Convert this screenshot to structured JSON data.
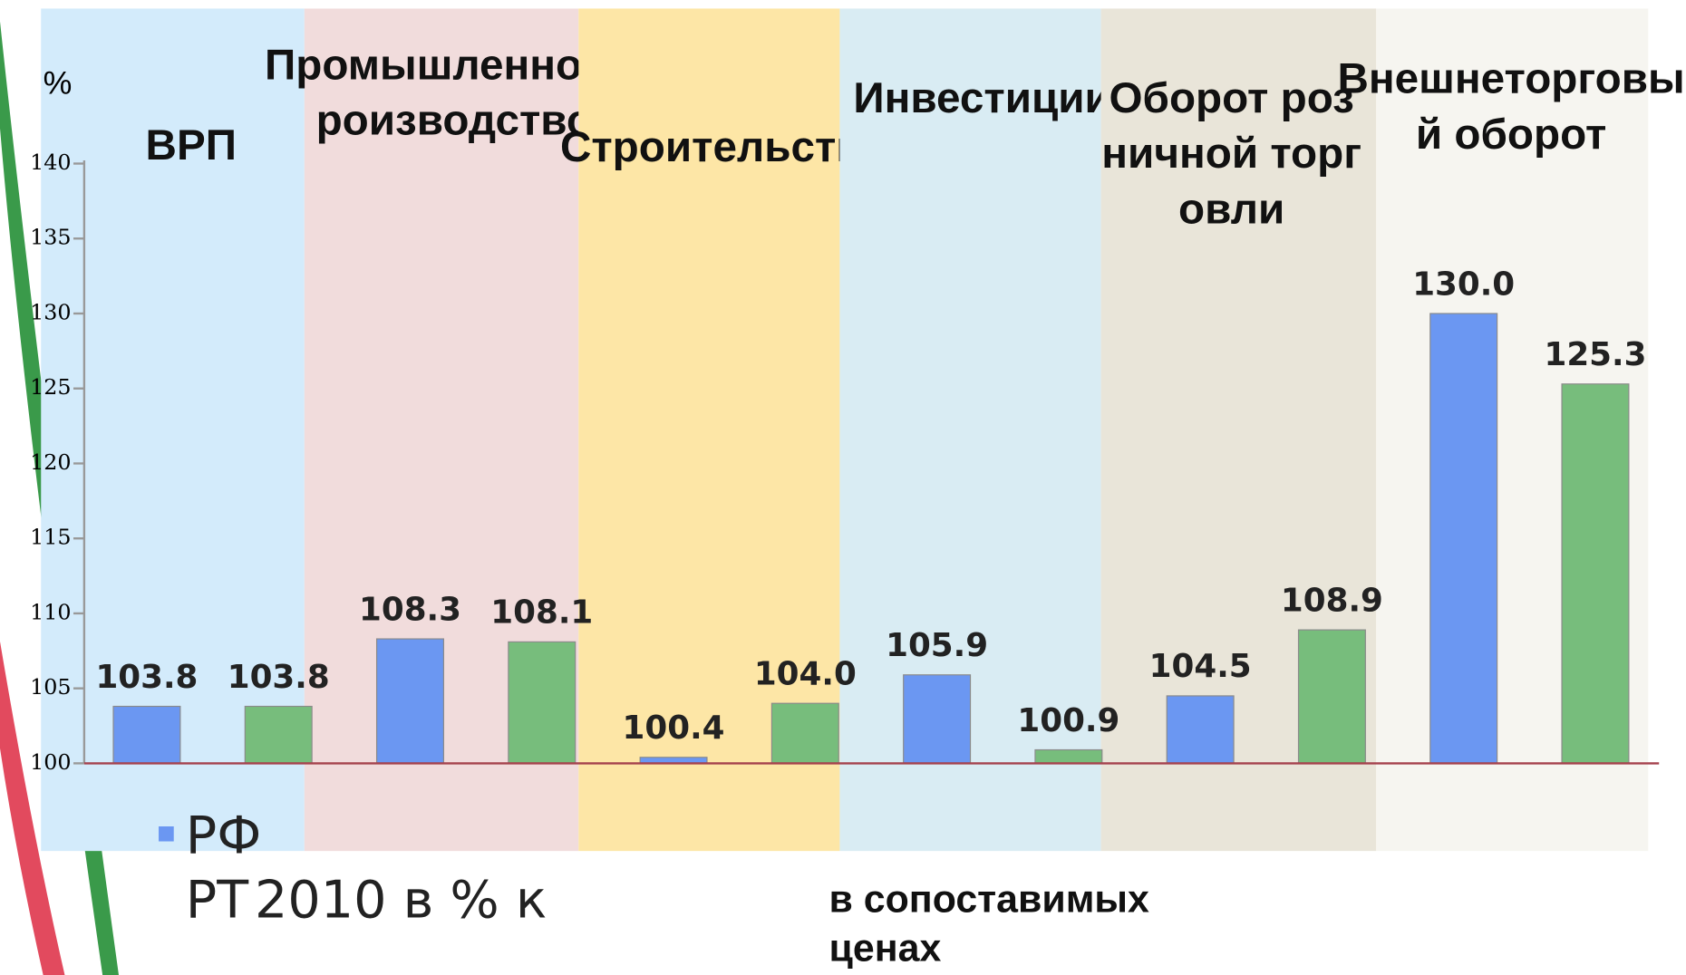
{
  "chart_data": {
    "type": "bar",
    "y_axis_label": "%",
    "categories": [
      "ВРП",
      "Промышленное производство",
      "Строительство",
      "Инвестиции",
      "Оборот розничной торговли",
      "Внешнеторговый оборот"
    ],
    "series": [
      {
        "name": "РФ",
        "color": "#6b97f2",
        "values": [
          103.8,
          108.3,
          100.4,
          105.9,
          104.5,
          130.0
        ],
        "value_labels": [
          "103.8",
          "108.3",
          "100.4",
          "105.9",
          "104.5",
          "130.0"
        ]
      },
      {
        "name": "РТ",
        "color": "#77bd7c",
        "values": [
          103.8,
          108.1,
          104.0,
          100.9,
          108.9,
          125.3
        ],
        "value_labels": [
          "103.8",
          "108.1",
          "104.0",
          "100.9",
          "108.9",
          "125.3"
        ]
      }
    ],
    "subtitle_fragment": "2010 в % к",
    "note": "в сопоставимых ценах",
    "ylim": [
      100,
      140
    ],
    "yticks": [
      100,
      105,
      110,
      115,
      120,
      125,
      130,
      135,
      140
    ],
    "band_colors": [
      "#d3ebfb",
      "#f1dcdc",
      "#fde6a6",
      "#d9ecf3",
      "#e9e5d9",
      "#f6f5f0"
    ],
    "baseline_color": "#a5424d"
  }
}
